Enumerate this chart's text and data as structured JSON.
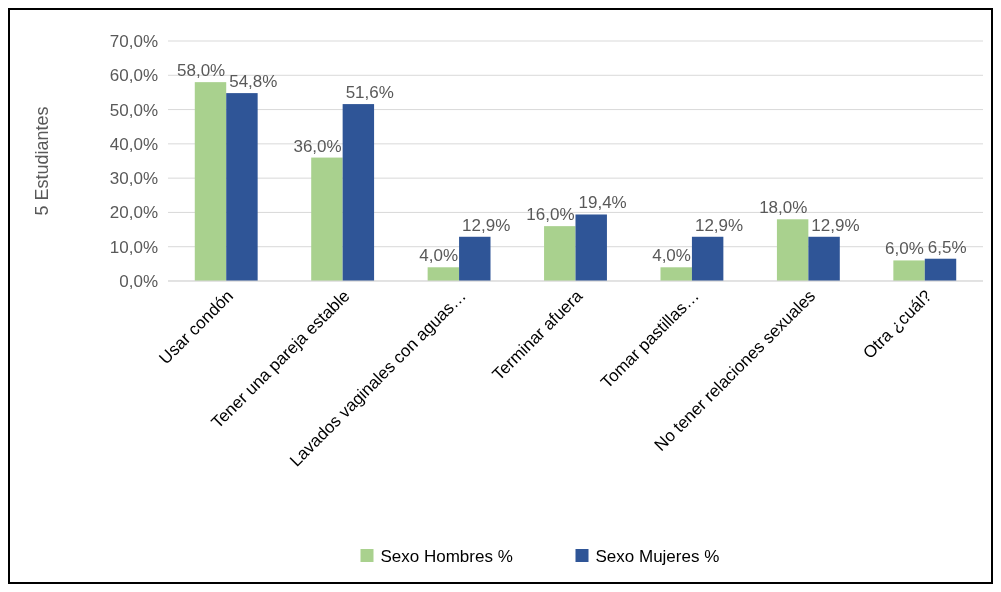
{
  "chart_data": {
    "type": "bar",
    "ylabel": "5 Estudiantes",
    "categories": [
      "Usar condón",
      "Tener una pareja estable",
      "Lavados vaginales con aguas…",
      "Terminar afuera",
      "Tomar pastillas…",
      "No tener relaciones sexuales",
      "Otra ¿cuál?"
    ],
    "series": [
      {
        "name": "Sexo Hombres %",
        "color": "#a9d18e",
        "values": [
          58.0,
          36.0,
          4.0,
          16.0,
          4.0,
          18.0,
          6.0
        ],
        "value_labels": [
          "58,0%",
          "36,0%",
          "4,0%",
          "16,0%",
          "4,0%",
          "18,0%",
          "6,0%"
        ]
      },
      {
        "name": "Sexo Mujeres %",
        "color": "#2f5597",
        "values": [
          54.8,
          51.6,
          12.9,
          19.4,
          12.9,
          12.9,
          6.5
        ],
        "value_labels": [
          "54,8%",
          "51,6%",
          "12,9%",
          "19,4%",
          "12,9%",
          "12,9%",
          "6,5%"
        ]
      }
    ],
    "ylim": [
      0,
      70
    ],
    "yticks": [
      {
        "value": 0,
        "label": "0,0%"
      },
      {
        "value": 10,
        "label": "10,0%"
      },
      {
        "value": 20,
        "label": "20,0%"
      },
      {
        "value": 30,
        "label": "30,0%"
      },
      {
        "value": 40,
        "label": "40,0%"
      },
      {
        "value": 50,
        "label": "50,0%"
      },
      {
        "value": 60,
        "label": "60,0%"
      },
      {
        "value": 70,
        "label": "70,0%"
      }
    ],
    "grid": "y",
    "legend": "bottom"
  }
}
